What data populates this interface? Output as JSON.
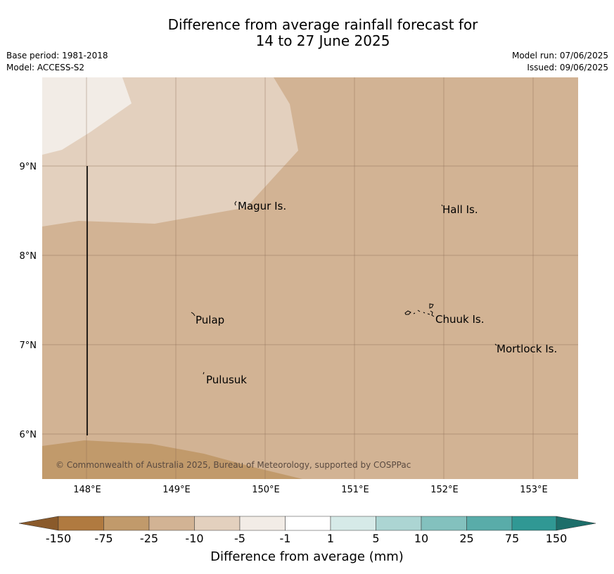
{
  "header": {
    "title_line1": "Difference from average rainfall forecast for",
    "title_line2": "14 to 27 June 2025",
    "base_period": "Base period: 1981-2018",
    "model": "Model: ACCESS-S2",
    "model_run": "Model run: 07/06/2025",
    "issued": "Issued: 09/06/2025"
  },
  "map": {
    "lat_labels": [
      "9°N",
      "8°N",
      "7°N",
      "6°N"
    ],
    "lon_labels": [
      "148°E",
      "149°E",
      "150°E",
      "151°E",
      "152°E",
      "153°E"
    ],
    "places": [
      {
        "name": "Magur Is."
      },
      {
        "name": "Hall Is."
      },
      {
        "name": "Pulap"
      },
      {
        "name": "Chuuk Is."
      },
      {
        "name": "Mortlock Is."
      },
      {
        "name": "Pulusuk"
      }
    ],
    "copyright": "© Commonwealth of Australia 2025, Bureau of Meteorology, supported by COSPPac",
    "colors": {
      "lt_-150": "#8a5a2b",
      "-150_-75": "#b07a40",
      "-75_-25": "#c19a6b",
      "-25_-10": "#d2b394",
      "-10_-5": "#e3d0be",
      "-5_-1": "#f2ece6",
      "-1_1": "#ffffff",
      "1_5": "#d6eae8",
      "5_10": "#acd5d3",
      "10_25": "#83c1be",
      "25_75": "#59aca9",
      "75_150": "#309894",
      "gt_150": "#1d6e6a"
    }
  },
  "colorbar": {
    "ticks": [
      "-150",
      "-75",
      "-25",
      "-10",
      "-5",
      "-1",
      "1",
      "5",
      "10",
      "25",
      "75",
      "150"
    ],
    "title": "Difference from average (mm)"
  }
}
